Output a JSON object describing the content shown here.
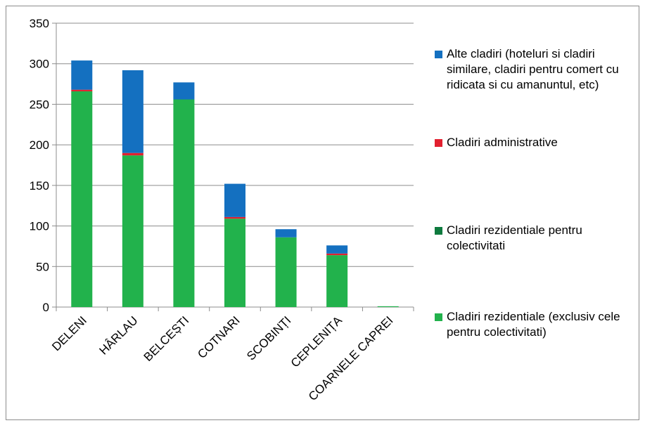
{
  "chart_data": {
    "type": "bar",
    "stacked": true,
    "categories": [
      "DELENI",
      "HÂRLAU",
      "BELCEȘTI",
      "COTNARI",
      "SCOBINȚI",
      "CEPLENIȚA",
      "COARNELE CAPREI"
    ],
    "series": [
      {
        "name": "Cladiri rezidentiale (exclusiv cele pentru colectivitati)",
        "color": "#22b24c",
        "values": [
          266,
          187,
          256,
          109,
          86,
          64,
          1
        ]
      },
      {
        "name": "Cladiri rezidentiale pentru colectivitati",
        "color": "#0e7a3e",
        "values": [
          0,
          0,
          0,
          0,
          0,
          0,
          0
        ]
      },
      {
        "name": "Cladiri administrative",
        "color": "#e2202f",
        "values": [
          2,
          3,
          0,
          2,
          0,
          2,
          0
        ]
      },
      {
        "name": "Alte cladiri (hoteluri si cladiri similare, cladiri pentru comert cu ridicata si cu amanuntul, etc)",
        "color": "#1470c0",
        "values": [
          36,
          102,
          21,
          41,
          10,
          10,
          0
        ]
      }
    ],
    "yticks": [
      "0",
      "50",
      "100",
      "150",
      "200",
      "250",
      "300",
      "350"
    ],
    "ylim": [
      0,
      350
    ],
    "grid": true,
    "legend_position": "right"
  },
  "legend": {
    "items": [
      {
        "label": "Alte cladiri (hoteluri si cladiri similare, cladiri pentru comert cu ridicata si cu amanuntul, etc)",
        "color": "#1470c0"
      },
      {
        "label": "Cladiri administrative",
        "color": "#e2202f"
      },
      {
        "label": "Cladiri rezidentiale pentru colectivitati",
        "color": "#0e7a3e"
      },
      {
        "label": "Cladiri rezidentiale (exclusiv cele pentru colectivitati)",
        "color": "#22b24c"
      }
    ]
  }
}
